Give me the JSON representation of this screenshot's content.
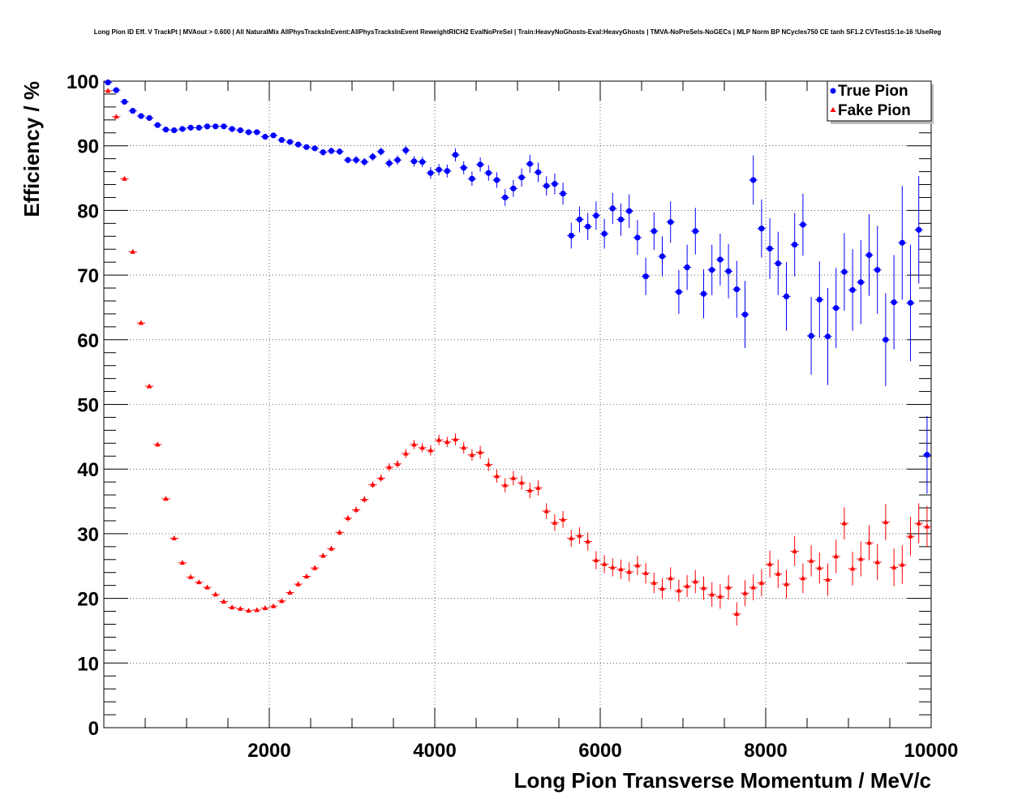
{
  "chart_data": {
    "type": "scatter",
    "title": "Long Pion ID Eff. V TrackPt | MVAout > 0.600 | All NaturalMix AllPhysTracksInEvent:AllPhysTracksInEvent ReweightRICH2 EvalNoPreSel | Train:HeavyNoGhosts-Eval:HeavyGhosts | TMVA-NoPreSels-NoGECs | MLP Norm BP NCycles750 CE tanh SF1.2 CVTest15:1e-16 !UseReg",
    "xlabel": "Long Pion Transverse Momentum / MeV/c",
    "ylabel": "Efficiency / %",
    "xlim": [
      0,
      10000
    ],
    "ylim": [
      0,
      100
    ],
    "x_ticks": [
      2000,
      4000,
      6000,
      8000,
      10000
    ],
    "y_ticks": [
      0,
      10,
      20,
      30,
      40,
      50,
      60,
      70,
      80,
      90,
      100
    ],
    "grid": true,
    "legend_position": "top-right",
    "series": [
      {
        "name": "True Pion",
        "color": "#0000ff",
        "marker": "circle",
        "points": [
          {
            "x": 50,
            "y": 99.8,
            "err": 0.2
          },
          {
            "x": 150,
            "y": 98.6,
            "err": 0.3
          },
          {
            "x": 250,
            "y": 96.8,
            "err": 0.3
          },
          {
            "x": 350,
            "y": 95.4,
            "err": 0.3
          },
          {
            "x": 450,
            "y": 94.6,
            "err": 0.3
          },
          {
            "x": 550,
            "y": 94.3,
            "err": 0.3
          },
          {
            "x": 650,
            "y": 93.2,
            "err": 0.3
          },
          {
            "x": 750,
            "y": 92.5,
            "err": 0.3
          },
          {
            "x": 850,
            "y": 92.4,
            "err": 0.3
          },
          {
            "x": 950,
            "y": 92.6,
            "err": 0.3
          },
          {
            "x": 1050,
            "y": 92.8,
            "err": 0.3
          },
          {
            "x": 1150,
            "y": 92.8,
            "err": 0.3
          },
          {
            "x": 1250,
            "y": 93.0,
            "err": 0.3
          },
          {
            "x": 1350,
            "y": 93.0,
            "err": 0.3
          },
          {
            "x": 1450,
            "y": 93.0,
            "err": 0.3
          },
          {
            "x": 1550,
            "y": 92.6,
            "err": 0.3
          },
          {
            "x": 1650,
            "y": 92.4,
            "err": 0.3
          },
          {
            "x": 1750,
            "y": 92.1,
            "err": 0.3
          },
          {
            "x": 1850,
            "y": 92.1,
            "err": 0.3
          },
          {
            "x": 1950,
            "y": 91.4,
            "err": 0.3
          },
          {
            "x": 2050,
            "y": 91.6,
            "err": 0.3
          },
          {
            "x": 2150,
            "y": 90.9,
            "err": 0.4
          },
          {
            "x": 2250,
            "y": 90.6,
            "err": 0.4
          },
          {
            "x": 2350,
            "y": 90.2,
            "err": 0.4
          },
          {
            "x": 2450,
            "y": 89.8,
            "err": 0.4
          },
          {
            "x": 2550,
            "y": 89.6,
            "err": 0.4
          },
          {
            "x": 2650,
            "y": 89.0,
            "err": 0.5
          },
          {
            "x": 2750,
            "y": 89.2,
            "err": 0.5
          },
          {
            "x": 2850,
            "y": 89.1,
            "err": 0.5
          },
          {
            "x": 2950,
            "y": 87.8,
            "err": 0.5
          },
          {
            "x": 3050,
            "y": 87.8,
            "err": 0.6
          },
          {
            "x": 3150,
            "y": 87.5,
            "err": 0.6
          },
          {
            "x": 3250,
            "y": 88.3,
            "err": 0.6
          },
          {
            "x": 3350,
            "y": 89.1,
            "err": 0.6
          },
          {
            "x": 3450,
            "y": 87.3,
            "err": 0.7
          },
          {
            "x": 3550,
            "y": 87.8,
            "err": 0.7
          },
          {
            "x": 3650,
            "y": 89.3,
            "err": 0.7
          },
          {
            "x": 3750,
            "y": 87.6,
            "err": 0.8
          },
          {
            "x": 3850,
            "y": 87.5,
            "err": 0.8
          },
          {
            "x": 3950,
            "y": 85.8,
            "err": 0.9
          },
          {
            "x": 4050,
            "y": 86.3,
            "err": 0.9
          },
          {
            "x": 4150,
            "y": 86.1,
            "err": 1.0
          },
          {
            "x": 4250,
            "y": 88.6,
            "err": 1.0
          },
          {
            "x": 4350,
            "y": 86.6,
            "err": 1.0
          },
          {
            "x": 4450,
            "y": 84.9,
            "err": 1.1
          },
          {
            "x": 4550,
            "y": 87.1,
            "err": 1.1
          },
          {
            "x": 4650,
            "y": 85.8,
            "err": 1.2
          },
          {
            "x": 4750,
            "y": 84.7,
            "err": 1.2
          },
          {
            "x": 4850,
            "y": 82.0,
            "err": 1.3
          },
          {
            "x": 4950,
            "y": 83.4,
            "err": 1.3
          },
          {
            "x": 5050,
            "y": 85.1,
            "err": 1.4
          },
          {
            "x": 5150,
            "y": 87.2,
            "err": 1.4
          },
          {
            "x": 5250,
            "y": 85.9,
            "err": 1.5
          },
          {
            "x": 5350,
            "y": 83.8,
            "err": 1.5
          },
          {
            "x": 5450,
            "y": 84.1,
            "err": 1.6
          },
          {
            "x": 5550,
            "y": 82.6,
            "err": 1.7
          },
          {
            "x": 5650,
            "y": 76.1,
            "err": 2.0
          },
          {
            "x": 5750,
            "y": 78.6,
            "err": 2.0
          },
          {
            "x": 5850,
            "y": 77.5,
            "err": 2.1
          },
          {
            "x": 5950,
            "y": 79.2,
            "err": 2.2
          },
          {
            "x": 6050,
            "y": 76.4,
            "err": 2.3
          },
          {
            "x": 6150,
            "y": 80.3,
            "err": 2.4
          },
          {
            "x": 6250,
            "y": 78.6,
            "err": 2.5
          },
          {
            "x": 6350,
            "y": 79.9,
            "err": 2.6
          },
          {
            "x": 6450,
            "y": 75.8,
            "err": 2.7
          },
          {
            "x": 6550,
            "y": 69.8,
            "err": 2.9
          },
          {
            "x": 6650,
            "y": 76.8,
            "err": 2.9
          },
          {
            "x": 6750,
            "y": 72.9,
            "err": 3.1
          },
          {
            "x": 6850,
            "y": 78.2,
            "err": 3.2
          },
          {
            "x": 6950,
            "y": 67.4,
            "err": 3.4
          },
          {
            "x": 7050,
            "y": 71.2,
            "err": 3.5
          },
          {
            "x": 7150,
            "y": 76.8,
            "err": 3.6
          },
          {
            "x": 7250,
            "y": 67.1,
            "err": 3.8
          },
          {
            "x": 7350,
            "y": 70.8,
            "err": 3.9
          },
          {
            "x": 7450,
            "y": 72.4,
            "err": 4.0
          },
          {
            "x": 7550,
            "y": 70.6,
            "err": 4.2
          },
          {
            "x": 7650,
            "y": 67.8,
            "err": 4.4
          },
          {
            "x": 7750,
            "y": 63.9,
            "err": 5.2
          },
          {
            "x": 7850,
            "y": 84.7,
            "err": 3.8
          },
          {
            "x": 7950,
            "y": 77.2,
            "err": 4.5
          },
          {
            "x": 8050,
            "y": 74.1,
            "err": 4.7
          },
          {
            "x": 8150,
            "y": 71.8,
            "err": 4.9
          },
          {
            "x": 8250,
            "y": 66.7,
            "err": 5.3
          },
          {
            "x": 8350,
            "y": 74.7,
            "err": 4.9
          },
          {
            "x": 8450,
            "y": 77.8,
            "err": 4.8
          },
          {
            "x": 8550,
            "y": 60.6,
            "err": 6.0
          },
          {
            "x": 8650,
            "y": 66.2,
            "err": 5.9
          },
          {
            "x": 8750,
            "y": 60.5,
            "err": 7.5
          },
          {
            "x": 8850,
            "y": 64.9,
            "err": 6.2
          },
          {
            "x": 8950,
            "y": 70.5,
            "err": 6.0
          },
          {
            "x": 9050,
            "y": 67.7,
            "err": 6.3
          },
          {
            "x": 9150,
            "y": 68.9,
            "err": 6.5
          },
          {
            "x": 9250,
            "y": 73.1,
            "err": 6.3
          },
          {
            "x": 9350,
            "y": 70.8,
            "err": 6.8
          },
          {
            "x": 9450,
            "y": 60.0,
            "err": 7.2
          },
          {
            "x": 9550,
            "y": 65.8,
            "err": 7.3
          },
          {
            "x": 9650,
            "y": 75.0,
            "err": 8.8
          },
          {
            "x": 9750,
            "y": 65.7,
            "err": 9.0
          },
          {
            "x": 9850,
            "y": 77.0,
            "err": 8.3
          },
          {
            "x": 9950,
            "y": 42.2,
            "err": 6.0
          }
        ]
      },
      {
        "name": "Fake Pion",
        "color": "#ff0000",
        "marker": "triangle",
        "points": [
          {
            "x": 50,
            "y": 98.5,
            "err": 0.2
          },
          {
            "x": 150,
            "y": 94.5,
            "err": 0.3
          },
          {
            "x": 250,
            "y": 84.9,
            "err": 0.3
          },
          {
            "x": 350,
            "y": 73.6,
            "err": 0.3
          },
          {
            "x": 450,
            "y": 62.6,
            "err": 0.3
          },
          {
            "x": 550,
            "y": 52.8,
            "err": 0.3
          },
          {
            "x": 650,
            "y": 43.8,
            "err": 0.3
          },
          {
            "x": 750,
            "y": 35.4,
            "err": 0.3
          },
          {
            "x": 850,
            "y": 29.3,
            "err": 0.3
          },
          {
            "x": 950,
            "y": 25.5,
            "err": 0.3
          },
          {
            "x": 1050,
            "y": 23.3,
            "err": 0.3
          },
          {
            "x": 1150,
            "y": 22.5,
            "err": 0.3
          },
          {
            "x": 1250,
            "y": 21.7,
            "err": 0.3
          },
          {
            "x": 1350,
            "y": 20.6,
            "err": 0.3
          },
          {
            "x": 1450,
            "y": 19.5,
            "err": 0.3
          },
          {
            "x": 1550,
            "y": 18.6,
            "err": 0.3
          },
          {
            "x": 1650,
            "y": 18.4,
            "err": 0.3
          },
          {
            "x": 1750,
            "y": 18.1,
            "err": 0.3
          },
          {
            "x": 1850,
            "y": 18.2,
            "err": 0.3
          },
          {
            "x": 1950,
            "y": 18.5,
            "err": 0.3
          },
          {
            "x": 2050,
            "y": 18.8,
            "err": 0.3
          },
          {
            "x": 2150,
            "y": 19.6,
            "err": 0.3
          },
          {
            "x": 2250,
            "y": 20.9,
            "err": 0.3
          },
          {
            "x": 2350,
            "y": 22.2,
            "err": 0.4
          },
          {
            "x": 2450,
            "y": 23.4,
            "err": 0.4
          },
          {
            "x": 2550,
            "y": 24.7,
            "err": 0.4
          },
          {
            "x": 2650,
            "y": 26.6,
            "err": 0.4
          },
          {
            "x": 2750,
            "y": 27.7,
            "err": 0.4
          },
          {
            "x": 2850,
            "y": 30.2,
            "err": 0.4
          },
          {
            "x": 2950,
            "y": 32.4,
            "err": 0.5
          },
          {
            "x": 3050,
            "y": 33.7,
            "err": 0.5
          },
          {
            "x": 3150,
            "y": 35.3,
            "err": 0.5
          },
          {
            "x": 3250,
            "y": 37.6,
            "err": 0.5
          },
          {
            "x": 3350,
            "y": 38.6,
            "err": 0.6
          },
          {
            "x": 3450,
            "y": 40.3,
            "err": 0.6
          },
          {
            "x": 3550,
            "y": 40.8,
            "err": 0.6
          },
          {
            "x": 3650,
            "y": 42.4,
            "err": 0.7
          },
          {
            "x": 3750,
            "y": 43.8,
            "err": 0.7
          },
          {
            "x": 3850,
            "y": 43.3,
            "err": 0.7
          },
          {
            "x": 3950,
            "y": 42.9,
            "err": 0.8
          },
          {
            "x": 4050,
            "y": 44.5,
            "err": 0.8
          },
          {
            "x": 4150,
            "y": 44.2,
            "err": 0.8
          },
          {
            "x": 4250,
            "y": 44.6,
            "err": 0.9
          },
          {
            "x": 4350,
            "y": 43.3,
            "err": 0.9
          },
          {
            "x": 4450,
            "y": 42.2,
            "err": 0.9
          },
          {
            "x": 4550,
            "y": 42.6,
            "err": 1.0
          },
          {
            "x": 4650,
            "y": 40.7,
            "err": 1.0
          },
          {
            "x": 4750,
            "y": 38.9,
            "err": 1.0
          },
          {
            "x": 4850,
            "y": 37.5,
            "err": 1.1
          },
          {
            "x": 4950,
            "y": 38.6,
            "err": 1.1
          },
          {
            "x": 5050,
            "y": 37.9,
            "err": 1.1
          },
          {
            "x": 5150,
            "y": 36.7,
            "err": 1.2
          },
          {
            "x": 5250,
            "y": 37.1,
            "err": 1.2
          },
          {
            "x": 5350,
            "y": 33.5,
            "err": 1.2
          },
          {
            "x": 5450,
            "y": 31.7,
            "err": 1.3
          },
          {
            "x": 5550,
            "y": 32.2,
            "err": 1.3
          },
          {
            "x": 5650,
            "y": 29.3,
            "err": 1.3
          },
          {
            "x": 5750,
            "y": 29.7,
            "err": 1.3
          },
          {
            "x": 5850,
            "y": 28.8,
            "err": 1.4
          },
          {
            "x": 5950,
            "y": 25.9,
            "err": 1.4
          },
          {
            "x": 6050,
            "y": 25.3,
            "err": 1.4
          },
          {
            "x": 6150,
            "y": 24.8,
            "err": 1.4
          },
          {
            "x": 6250,
            "y": 24.5,
            "err": 1.5
          },
          {
            "x": 6350,
            "y": 24.1,
            "err": 1.5
          },
          {
            "x": 6450,
            "y": 25.1,
            "err": 1.5
          },
          {
            "x": 6550,
            "y": 23.9,
            "err": 1.6
          },
          {
            "x": 6650,
            "y": 22.4,
            "err": 1.6
          },
          {
            "x": 6750,
            "y": 21.5,
            "err": 1.6
          },
          {
            "x": 6850,
            "y": 23.1,
            "err": 1.7
          },
          {
            "x": 6950,
            "y": 21.2,
            "err": 1.7
          },
          {
            "x": 7050,
            "y": 21.9,
            "err": 1.7
          },
          {
            "x": 7150,
            "y": 22.6,
            "err": 1.8
          },
          {
            "x": 7250,
            "y": 21.6,
            "err": 1.8
          },
          {
            "x": 7350,
            "y": 20.6,
            "err": 1.9
          },
          {
            "x": 7450,
            "y": 20.3,
            "err": 1.9
          },
          {
            "x": 7550,
            "y": 21.7,
            "err": 1.9
          },
          {
            "x": 7650,
            "y": 17.6,
            "err": 1.8
          },
          {
            "x": 7750,
            "y": 20.8,
            "err": 2.0
          },
          {
            "x": 7850,
            "y": 21.7,
            "err": 2.0
          },
          {
            "x": 7950,
            "y": 22.4,
            "err": 2.1
          },
          {
            "x": 8050,
            "y": 25.3,
            "err": 2.1
          },
          {
            "x": 8150,
            "y": 23.8,
            "err": 2.2
          },
          {
            "x": 8250,
            "y": 22.2,
            "err": 2.2
          },
          {
            "x": 8350,
            "y": 27.3,
            "err": 2.3
          },
          {
            "x": 8450,
            "y": 23.1,
            "err": 2.3
          },
          {
            "x": 8550,
            "y": 25.8,
            "err": 2.4
          },
          {
            "x": 8650,
            "y": 24.7,
            "err": 2.4
          },
          {
            "x": 8750,
            "y": 22.9,
            "err": 2.5
          },
          {
            "x": 8850,
            "y": 26.5,
            "err": 2.6
          },
          {
            "x": 8950,
            "y": 31.6,
            "err": 2.5
          },
          {
            "x": 9050,
            "y": 24.6,
            "err": 2.6
          },
          {
            "x": 9150,
            "y": 26.1,
            "err": 2.7
          },
          {
            "x": 9250,
            "y": 28.6,
            "err": 2.7
          },
          {
            "x": 9350,
            "y": 25.6,
            "err": 2.8
          },
          {
            "x": 9450,
            "y": 31.8,
            "err": 2.8
          },
          {
            "x": 9550,
            "y": 24.8,
            "err": 2.9
          },
          {
            "x": 9650,
            "y": 25.2,
            "err": 3.0
          },
          {
            "x": 9750,
            "y": 29.6,
            "err": 3.0
          },
          {
            "x": 9850,
            "y": 31.6,
            "err": 3.1
          },
          {
            "x": 9950,
            "y": 31.1,
            "err": 3.2
          }
        ]
      }
    ]
  }
}
